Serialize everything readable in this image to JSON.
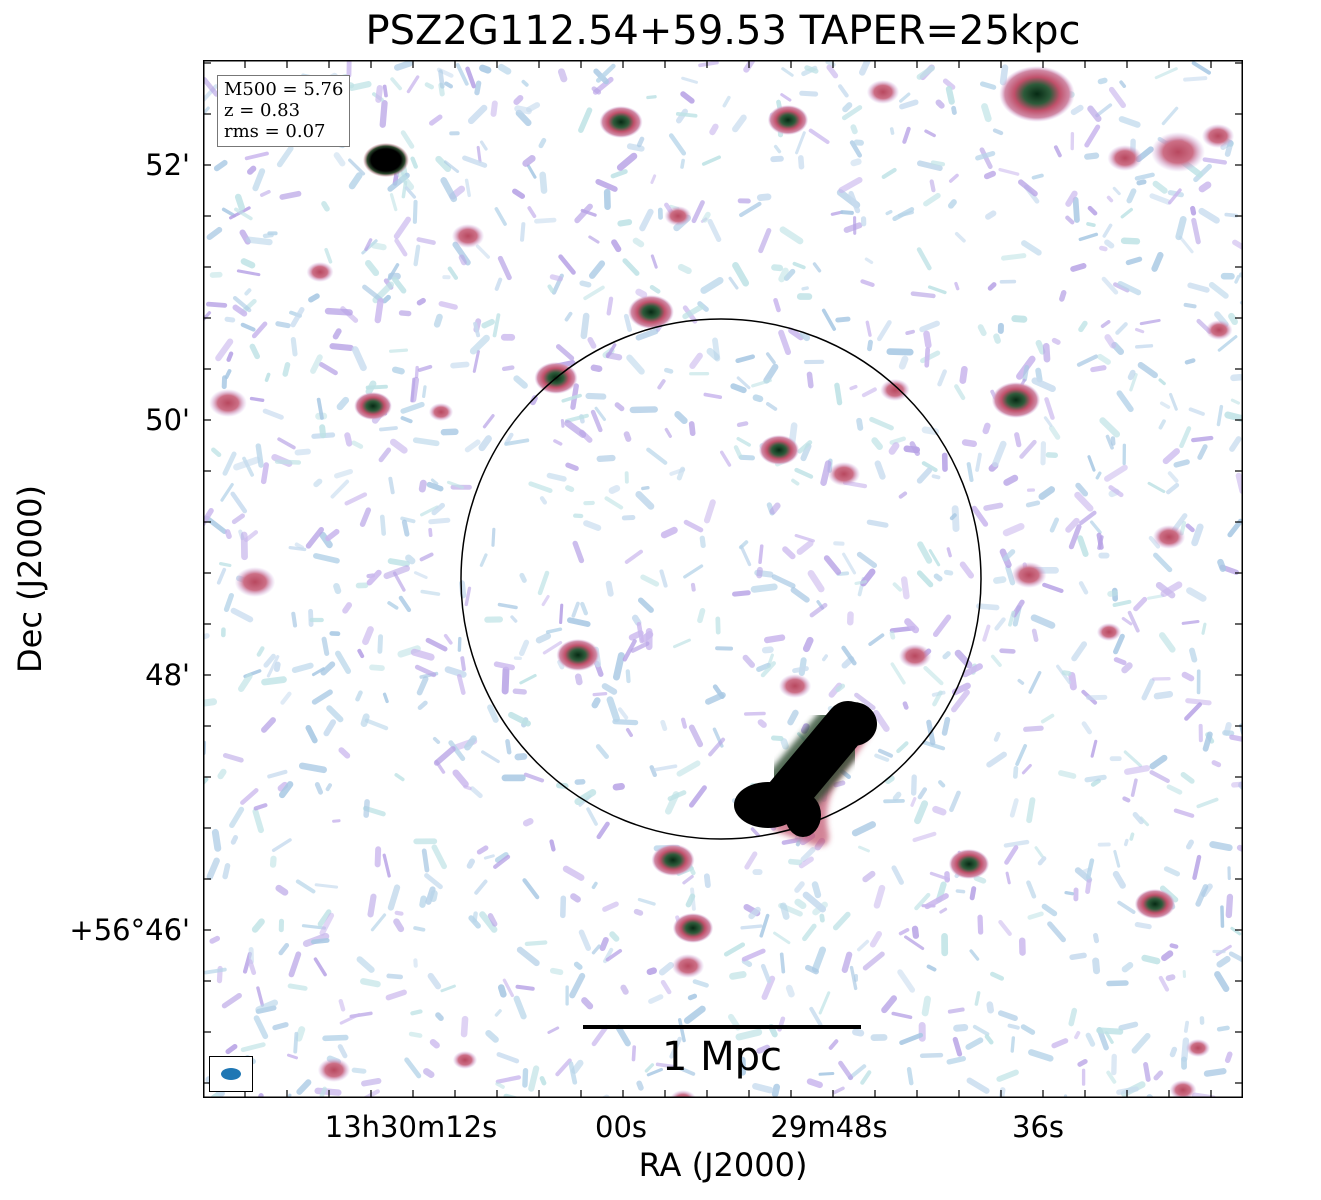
{
  "title": "PSZ2G112.54+59.53 TAPER=25kpc",
  "axes": {
    "xlabel": "RA (J2000)",
    "ylabel": "Dec (J2000)",
    "x_ticks": [
      "13h30m12s",
      "00s",
      "29m48s",
      "36s"
    ],
    "y_ticks": [
      "52'",
      "50'",
      "48'",
      "+56°46'"
    ]
  },
  "infobox": {
    "line1": "M500 = 5.76",
    "line2": "z = 0.83",
    "line3": "rms = 0.07"
  },
  "scalebar": {
    "label": "1 Mpc"
  },
  "colors": {
    "frame": "#000000",
    "circle": "#000000",
    "beam": "#1f77b4",
    "noise_light": "#b9d6ea",
    "noise_purple": "#b8a3e6",
    "source_red": "#c8546a",
    "source_core": "#0b3d1f"
  }
}
